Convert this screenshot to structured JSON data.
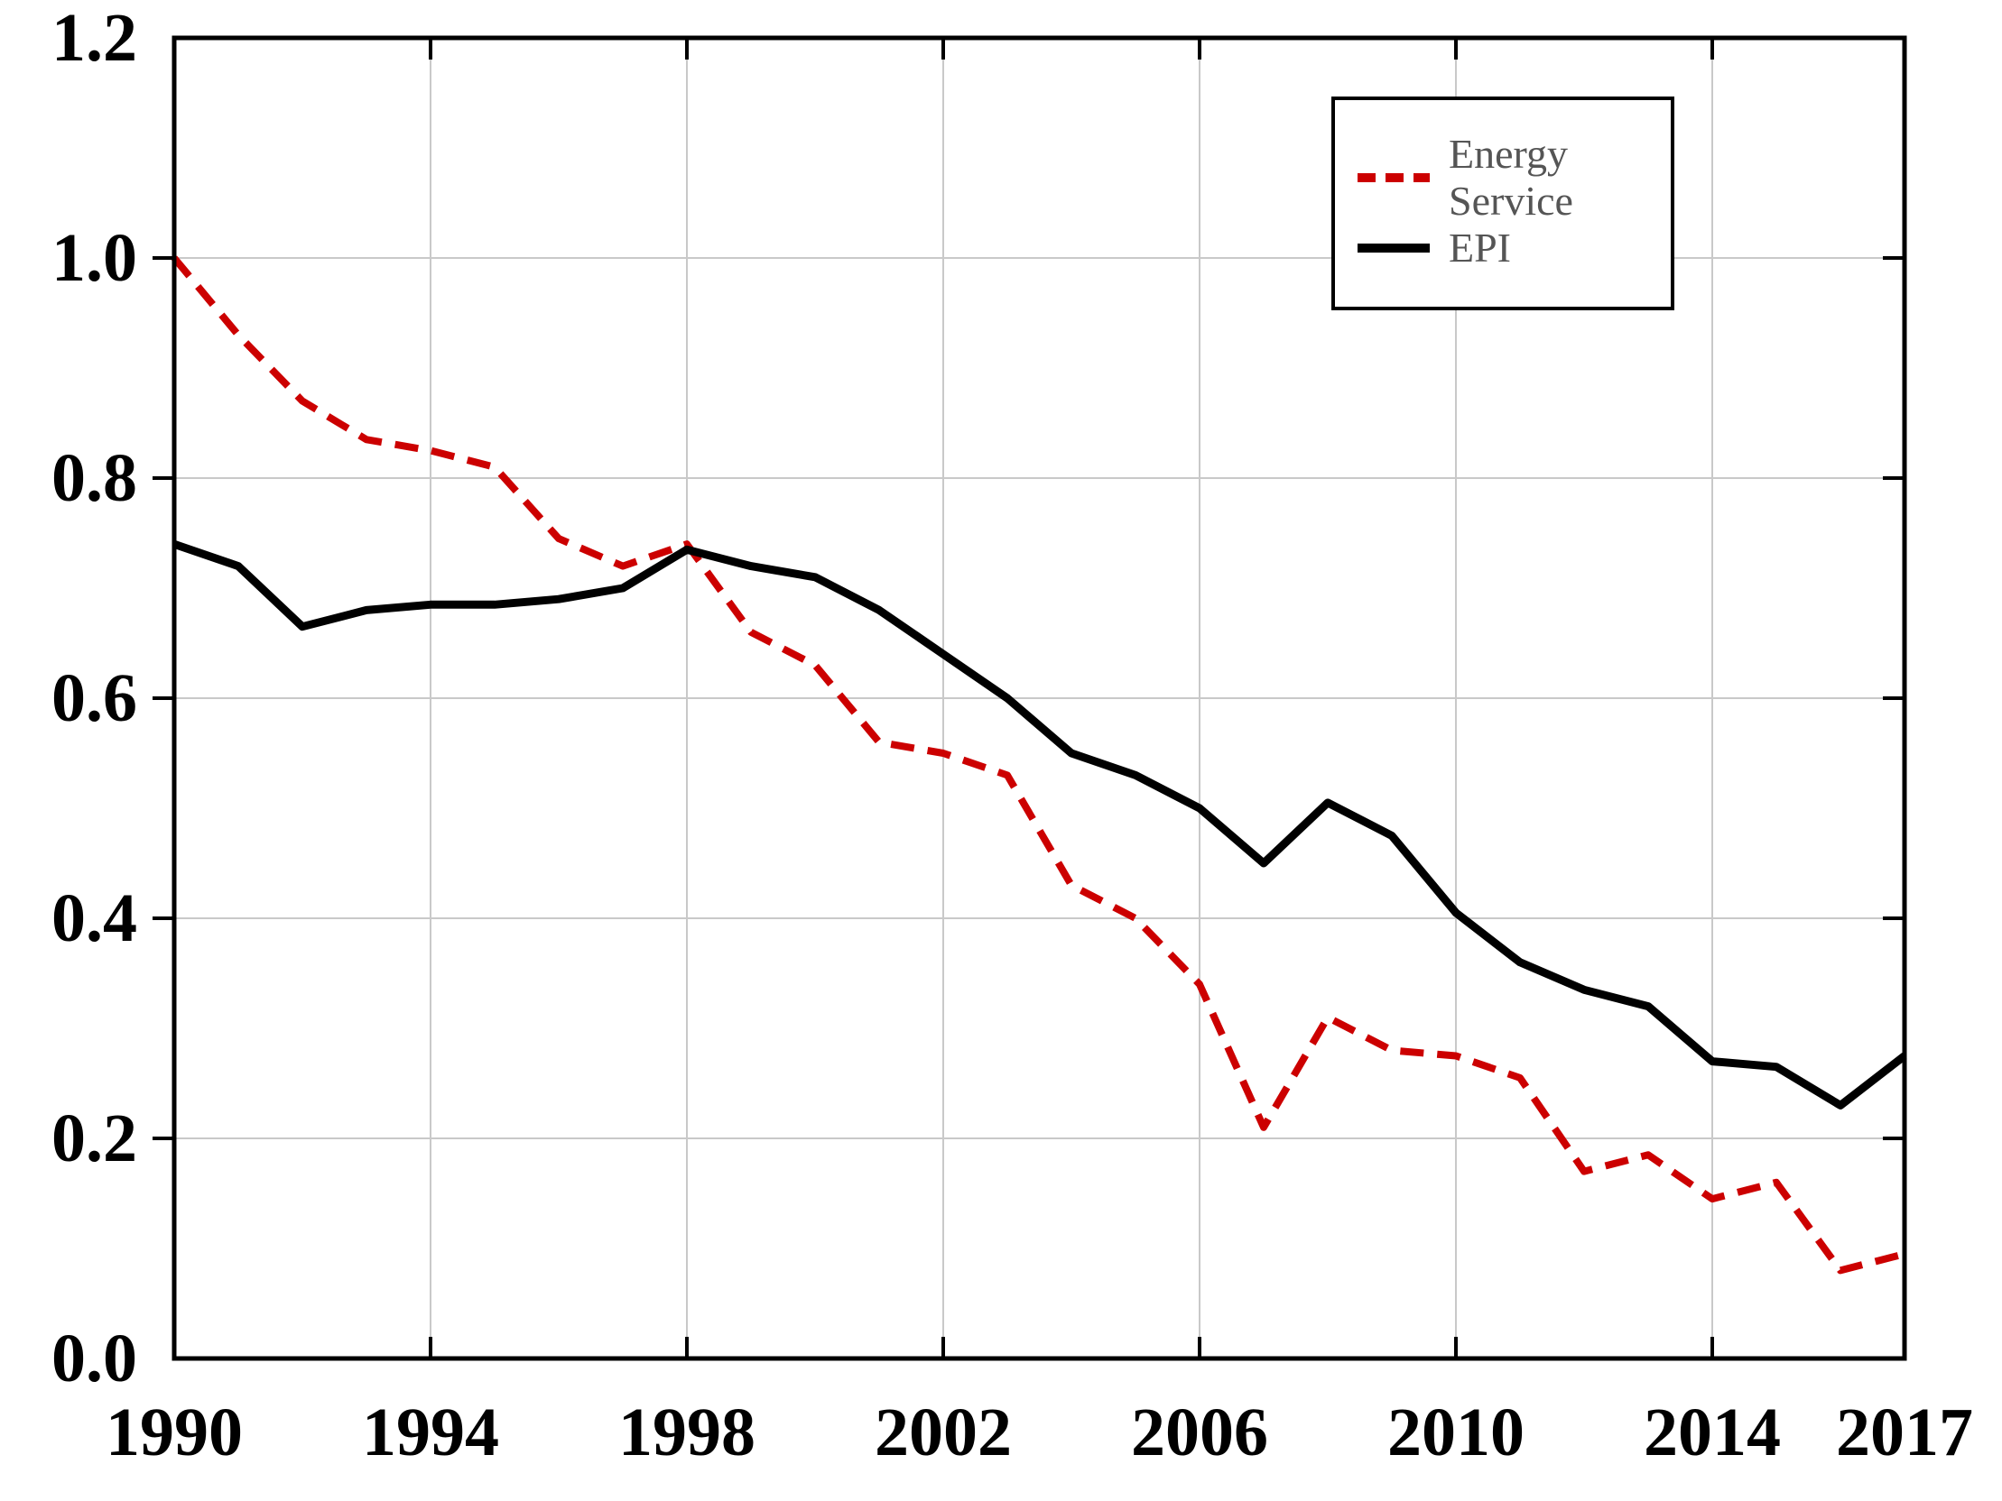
{
  "figure": {
    "background": "#ffffff"
  },
  "chart_data": {
    "type": "line",
    "title": "",
    "xlabel": "",
    "ylabel": "",
    "xlim": [
      1990,
      2017
    ],
    "ylim": [
      0,
      1.2
    ],
    "grid": true,
    "legend_position": "top-right",
    "grid_color": "#c9c9c9",
    "axis_color": "#000000",
    "tick_label_color": "#000000",
    "legend_text_color": "#555555",
    "x": [
      1990,
      1991,
      1992,
      1993,
      1994,
      1995,
      1996,
      1997,
      1998,
      1999,
      2000,
      2001,
      2002,
      2003,
      2004,
      2005,
      2006,
      2007,
      2008,
      2009,
      2010,
      2011,
      2012,
      2013,
      2014,
      2015,
      2016,
      2017
    ],
    "series": [
      {
        "name": "Energy Service",
        "color": "#CC0000",
        "line_style": "dashed",
        "values": [
          1.0,
          0.93,
          0.87,
          0.835,
          0.825,
          0.81,
          0.745,
          0.72,
          0.74,
          0.66,
          0.63,
          0.56,
          0.55,
          0.53,
          0.43,
          0.4,
          0.34,
          0.21,
          0.31,
          0.28,
          0.275,
          0.255,
          0.17,
          0.185,
          0.145,
          0.16,
          0.08,
          0.095
        ]
      },
      {
        "name": "EPI",
        "color": "#000000",
        "line_style": "solid",
        "values": [
          0.74,
          0.72,
          0.665,
          0.68,
          0.685,
          0.685,
          0.69,
          0.7,
          0.735,
          0.72,
          0.71,
          0.68,
          0.64,
          0.6,
          0.55,
          0.53,
          0.5,
          0.45,
          0.505,
          0.475,
          0.405,
          0.36,
          0.335,
          0.32,
          0.27,
          0.265,
          0.23,
          0.275
        ]
      }
    ],
    "x_ticks": [
      {
        "v": 1990,
        "label": "1990"
      },
      {
        "v": 1994,
        "label": "1994"
      },
      {
        "v": 1998,
        "label": "1998"
      },
      {
        "v": 2002,
        "label": "2002"
      },
      {
        "v": 2006,
        "label": "2006"
      },
      {
        "v": 2010,
        "label": "2010"
      },
      {
        "v": 2014,
        "label": "2014"
      },
      {
        "v": 2017,
        "label": "2017"
      }
    ],
    "y_ticks": [
      {
        "v": 0.0,
        "label": "0.0"
      },
      {
        "v": 0.2,
        "label": "0.2"
      },
      {
        "v": 0.4,
        "label": "0.4"
      },
      {
        "v": 0.6,
        "label": "0.6"
      },
      {
        "v": 0.8,
        "label": "0.8"
      },
      {
        "v": 1.0,
        "label": "1.0"
      },
      {
        "v": 1.2,
        "label": "1.2"
      }
    ]
  }
}
